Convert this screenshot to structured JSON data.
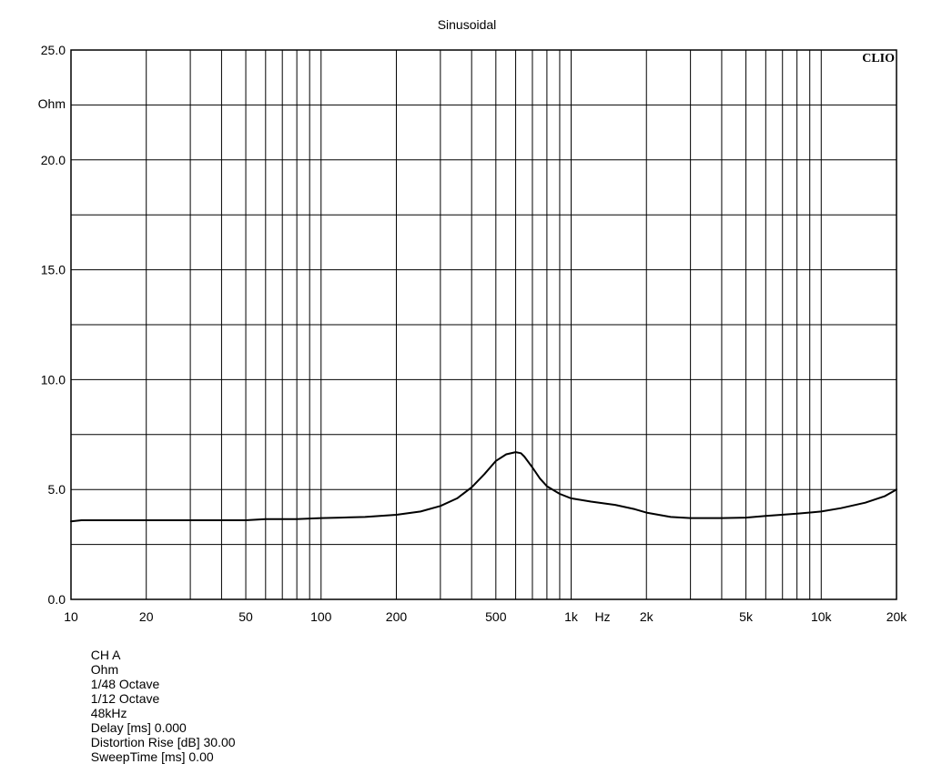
{
  "chart_data": {
    "type": "line",
    "title": "Sinusoidal",
    "xlabel": "Hz",
    "ylabel": "Ohm",
    "watermark": "CLIO",
    "x_scale": "log",
    "xlim": [
      10,
      20000
    ],
    "ylim": [
      0,
      25
    ],
    "grid": true,
    "x_ticks": [
      {
        "value": 10,
        "label": "10"
      },
      {
        "value": 20,
        "label": "20"
      },
      {
        "value": 50,
        "label": "50"
      },
      {
        "value": 100,
        "label": "100"
      },
      {
        "value": 200,
        "label": "200"
      },
      {
        "value": 500,
        "label": "500"
      },
      {
        "value": 1000,
        "label": "1k"
      },
      {
        "value": 2000,
        "label": "2k"
      },
      {
        "value": 5000,
        "label": "5k"
      },
      {
        "value": 10000,
        "label": "10k"
      },
      {
        "value": 20000,
        "label": "20k"
      }
    ],
    "y_ticks": [
      {
        "value": 0,
        "label": "0.0"
      },
      {
        "value": 5,
        "label": "5.0"
      },
      {
        "value": 10,
        "label": "10.0"
      },
      {
        "value": 15,
        "label": "15.0"
      },
      {
        "value": 20,
        "label": "20.0"
      },
      {
        "value": 25,
        "label": "25.0"
      }
    ],
    "series": [
      {
        "color": "#000000",
        "x": [
          10,
          11,
          15,
          20,
          30,
          40,
          50,
          60,
          70,
          80,
          100,
          120,
          150,
          200,
          250,
          300,
          350,
          400,
          450,
          500,
          550,
          600,
          630,
          650,
          700,
          750,
          800,
          900,
          1000,
          1200,
          1500,
          1800,
          2000,
          2500,
          3000,
          4000,
          5000,
          6000,
          8000,
          10000,
          12000,
          15000,
          18000,
          20000
        ],
        "values": [
          3.55,
          3.6,
          3.6,
          3.6,
          3.6,
          3.6,
          3.6,
          3.65,
          3.65,
          3.65,
          3.7,
          3.72,
          3.75,
          3.85,
          4.0,
          4.25,
          4.6,
          5.1,
          5.7,
          6.3,
          6.6,
          6.7,
          6.65,
          6.5,
          6.0,
          5.5,
          5.15,
          4.8,
          4.6,
          4.45,
          4.3,
          4.1,
          3.95,
          3.75,
          3.7,
          3.7,
          3.72,
          3.8,
          3.9,
          4.0,
          4.15,
          4.4,
          4.7,
          5.0
        ]
      }
    ]
  },
  "footer": {
    "channel": "CH A",
    "unit": "Ohm",
    "resolution": "1/48 Octave",
    "smoothing": "1/12 Octave",
    "sample_rate": "48kHz",
    "delay": "Delay [ms] 0.000",
    "distortion_rise": "Distortion Rise [dB] 30.00",
    "sweep_time": "SweepTime [ms] 0.00"
  }
}
